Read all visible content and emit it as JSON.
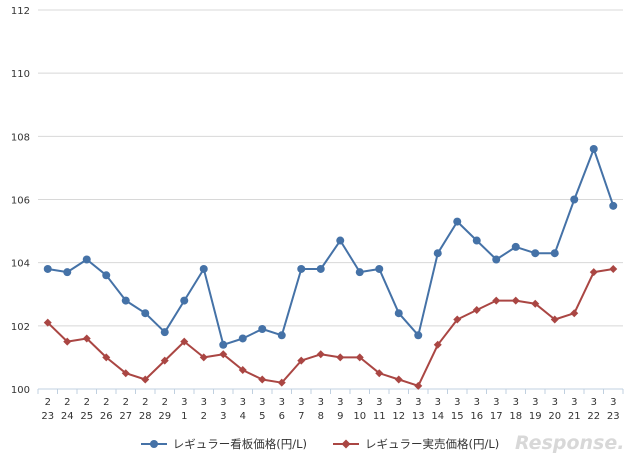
{
  "chart_data": {
    "type": "line",
    "x": [
      {
        "month": "2",
        "day": "23"
      },
      {
        "month": "2",
        "day": "24"
      },
      {
        "month": "2",
        "day": "25"
      },
      {
        "month": "2",
        "day": "26"
      },
      {
        "month": "2",
        "day": "27"
      },
      {
        "month": "2",
        "day": "28"
      },
      {
        "month": "2",
        "day": "29"
      },
      {
        "month": "3",
        "day": "1"
      },
      {
        "month": "3",
        "day": "2"
      },
      {
        "month": "3",
        "day": "3"
      },
      {
        "month": "3",
        "day": "4"
      },
      {
        "month": "3",
        "day": "5"
      },
      {
        "month": "3",
        "day": "6"
      },
      {
        "month": "3",
        "day": "7"
      },
      {
        "month": "3",
        "day": "8"
      },
      {
        "month": "3",
        "day": "9"
      },
      {
        "month": "3",
        "day": "10"
      },
      {
        "month": "3",
        "day": "11"
      },
      {
        "month": "3",
        "day": "12"
      },
      {
        "month": "3",
        "day": "13"
      },
      {
        "month": "3",
        "day": "14"
      },
      {
        "month": "3",
        "day": "15"
      },
      {
        "month": "3",
        "day": "16"
      },
      {
        "month": "3",
        "day": "17"
      },
      {
        "month": "3",
        "day": "18"
      },
      {
        "month": "3",
        "day": "19"
      },
      {
        "month": "3",
        "day": "20"
      },
      {
        "month": "3",
        "day": "21"
      },
      {
        "month": "3",
        "day": "22"
      },
      {
        "month": "3",
        "day": "23"
      }
    ],
    "series": [
      {
        "name": "レギュラー看板価格(円/L)",
        "color": "#4572a7",
        "marker": "circle",
        "values": [
          103.8,
          103.7,
          104.1,
          103.6,
          102.8,
          102.4,
          101.8,
          102.8,
          103.8,
          101.4,
          101.6,
          101.9,
          101.7,
          103.8,
          103.8,
          104.7,
          103.7,
          103.8,
          102.4,
          101.7,
          104.3,
          105.3,
          104.7,
          104.1,
          104.5,
          104.3,
          104.3,
          106.0,
          107.6,
          105.8
        ]
      },
      {
        "name": "レギュラー実売価格(円/L)",
        "color": "#aa4643",
        "marker": "diamond",
        "values": [
          102.1,
          101.5,
          101.6,
          101.0,
          100.5,
          100.3,
          100.9,
          101.5,
          101.0,
          101.1,
          100.6,
          100.3,
          100.2,
          100.9,
          101.1,
          101.0,
          101.0,
          100.5,
          100.3,
          100.1,
          101.4,
          102.2,
          102.5,
          102.8,
          102.8,
          102.7,
          102.2,
          102.4,
          103.7,
          103.8
        ]
      }
    ],
    "y_ticks": [
      "100",
      "102",
      "104",
      "106",
      "108",
      "110",
      "112"
    ],
    "ylim": [
      100,
      112
    ],
    "grid": true,
    "legend_position": "bottom"
  },
  "watermark": {
    "text": "Response.",
    "icon": "response-logo"
  }
}
